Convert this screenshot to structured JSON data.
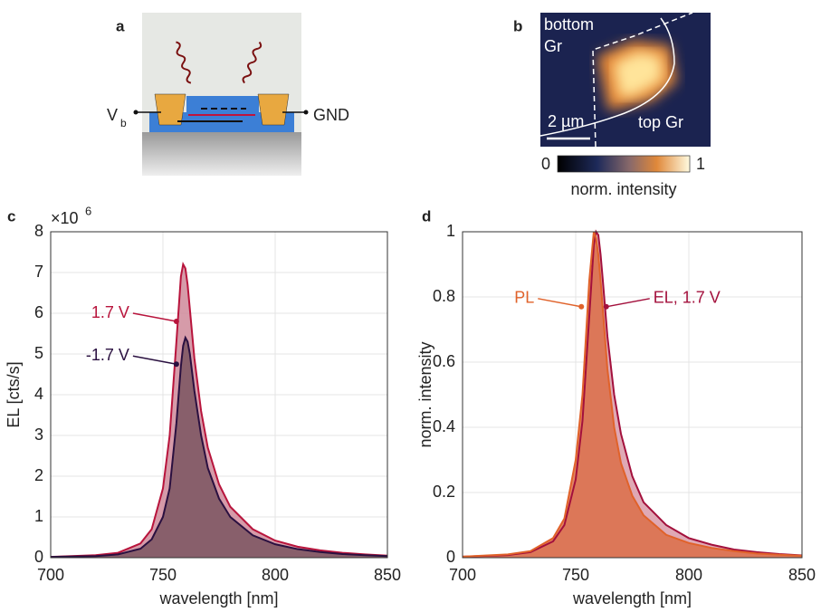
{
  "panel_a": {
    "label": "a",
    "left_terminal": "V",
    "left_terminal_sub": "b",
    "right_terminal": "GND"
  },
  "panel_b": {
    "label": "b",
    "region_bottom": [
      "bottom",
      "Gr"
    ],
    "region_top": "top Gr",
    "scale_bar": "2 µm",
    "colorbar": {
      "min": "0",
      "max": "1",
      "label": "norm. intensity"
    }
  },
  "chart_data": [
    {
      "type": "area",
      "panel_label": "c",
      "xlabel": "wavelength [nm]",
      "ylabel": "EL [cts/s]",
      "y_multiplier": {
        "base": "×10",
        "exponent": "6"
      },
      "x": [
        700,
        720,
        730,
        740,
        745,
        750,
        753,
        756,
        758,
        759,
        760,
        761,
        762,
        764,
        767,
        770,
        775,
        780,
        790,
        800,
        810,
        820,
        830,
        840,
        850
      ],
      "series": [
        {
          "name": "1.7 V",
          "color": "#b8143c",
          "fill": "#cf8a9a",
          "values": [
            0.02,
            0.06,
            0.12,
            0.35,
            0.7,
            1.7,
            3.0,
            5.3,
            6.9,
            7.2,
            7.1,
            6.7,
            6.1,
            4.9,
            3.6,
            2.7,
            1.8,
            1.25,
            0.7,
            0.42,
            0.27,
            0.18,
            0.12,
            0.08,
            0.05
          ]
        },
        {
          "name": "-1.7 V",
          "color": "#2a1040",
          "fill": "#7a5560",
          "values": [
            0.02,
            0.04,
            0.08,
            0.22,
            0.45,
            1.0,
            1.7,
            3.3,
            4.7,
            5.2,
            5.4,
            5.3,
            5.0,
            4.1,
            3.0,
            2.2,
            1.45,
            1.0,
            0.55,
            0.33,
            0.21,
            0.14,
            0.09,
            0.06,
            0.04
          ]
        }
      ],
      "annotations": [
        {
          "text": "1.7 V",
          "x": 756,
          "y": 5.8,
          "color": "#b8143c",
          "side": "left"
        },
        {
          "text": "-1.7 V",
          "x": 756,
          "y": 4.75,
          "color": "#2a1040",
          "side": "left"
        }
      ],
      "xlim": [
        700,
        850
      ],
      "xticks": [
        700,
        750,
        800,
        850
      ],
      "ylim": [
        0,
        8
      ],
      "yticks": [
        0,
        1,
        2,
        3,
        4,
        5,
        6,
        7,
        8
      ],
      "grid": true
    },
    {
      "type": "area",
      "panel_label": "d",
      "xlabel": "wavelength [nm]",
      "ylabel": "norm. intensity",
      "x": [
        700,
        720,
        730,
        740,
        745,
        750,
        753,
        756,
        758,
        759,
        760,
        761,
        762,
        764,
        767,
        770,
        775,
        780,
        790,
        800,
        810,
        820,
        830,
        840,
        850
      ],
      "series": [
        {
          "name": "EL, 1.7 V",
          "color": "#a3103c",
          "fill": "#d99aa8",
          "values": [
            0.003,
            0.008,
            0.017,
            0.05,
            0.1,
            0.24,
            0.42,
            0.74,
            0.96,
            1.0,
            0.99,
            0.93,
            0.85,
            0.68,
            0.5,
            0.38,
            0.25,
            0.17,
            0.1,
            0.06,
            0.04,
            0.025,
            0.017,
            0.011,
            0.007
          ]
        },
        {
          "name": "PL",
          "color": "#e0622a",
          "fill": "#dc6e48",
          "values": [
            0.003,
            0.01,
            0.02,
            0.06,
            0.12,
            0.3,
            0.5,
            0.85,
            1.0,
            0.98,
            0.93,
            0.85,
            0.76,
            0.58,
            0.4,
            0.29,
            0.19,
            0.13,
            0.07,
            0.045,
            0.03,
            0.02,
            0.013,
            0.009,
            0.006
          ]
        }
      ],
      "annotations": [
        {
          "text": "PL",
          "x": 752.5,
          "y": 0.77,
          "color": "#e0622a",
          "side": "left"
        },
        {
          "text": "EL, 1.7 V",
          "x": 763.5,
          "y": 0.77,
          "color": "#a3103c",
          "side": "right"
        }
      ],
      "xlim": [
        700,
        850
      ],
      "xticks": [
        700,
        750,
        800,
        850
      ],
      "ylim": [
        0,
        1
      ],
      "yticks": [
        0,
        0.2,
        0.4,
        0.6,
        0.8,
        1
      ],
      "grid": true
    }
  ]
}
